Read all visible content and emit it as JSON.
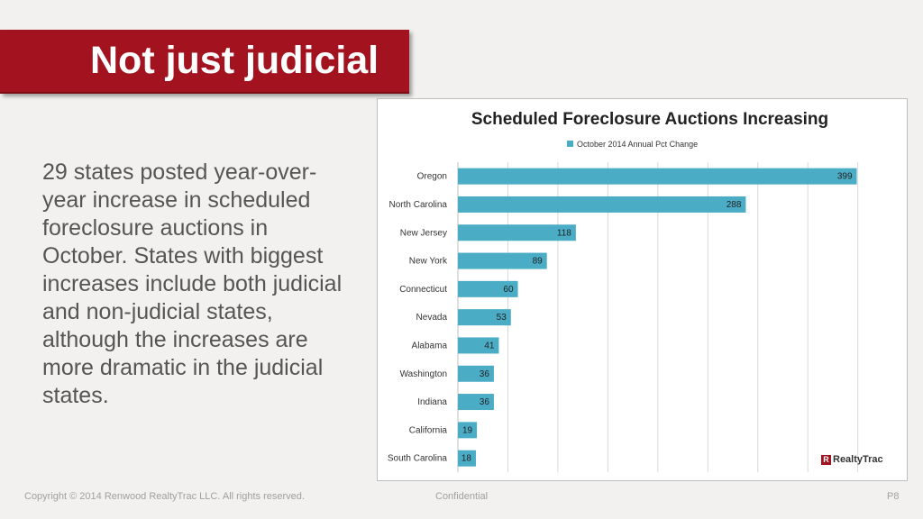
{
  "slide": {
    "title": "Not just judicial",
    "body": "29 states posted year-over-year increase in scheduled foreclosure auctions in October. States with biggest increases include both judicial and non-judicial states, although the increases are more dramatic in the judicial states."
  },
  "footer": {
    "copyright": "Copyright © 2014 Renwood RealtyTrac LLC. All rights reserved.",
    "confidential": "Confidential",
    "page": "P8"
  },
  "logo": {
    "text": "RealtyTrac",
    "mark": "R"
  },
  "colors": {
    "bar": "#4bacc6",
    "banner": "#a3131f",
    "grid": "#d9d9d9"
  },
  "chart_data": {
    "type": "bar",
    "orientation": "horizontal",
    "title": "Scheduled Foreclosure Auctions Increasing",
    "legend_position": "top",
    "grid": true,
    "xlim": [
      0,
      440
    ],
    "categories": [
      "Oregon",
      "North Carolina",
      "New Jersey",
      "New York",
      "Connecticut",
      "Nevada",
      "Alabama",
      "Washington",
      "Indiana",
      "California",
      "South Carolina"
    ],
    "series": [
      {
        "name": "October 2014 Annual Pct Change",
        "values": [
          399,
          288,
          118,
          89,
          60,
          53,
          41,
          36,
          36,
          19,
          18
        ]
      }
    ]
  }
}
